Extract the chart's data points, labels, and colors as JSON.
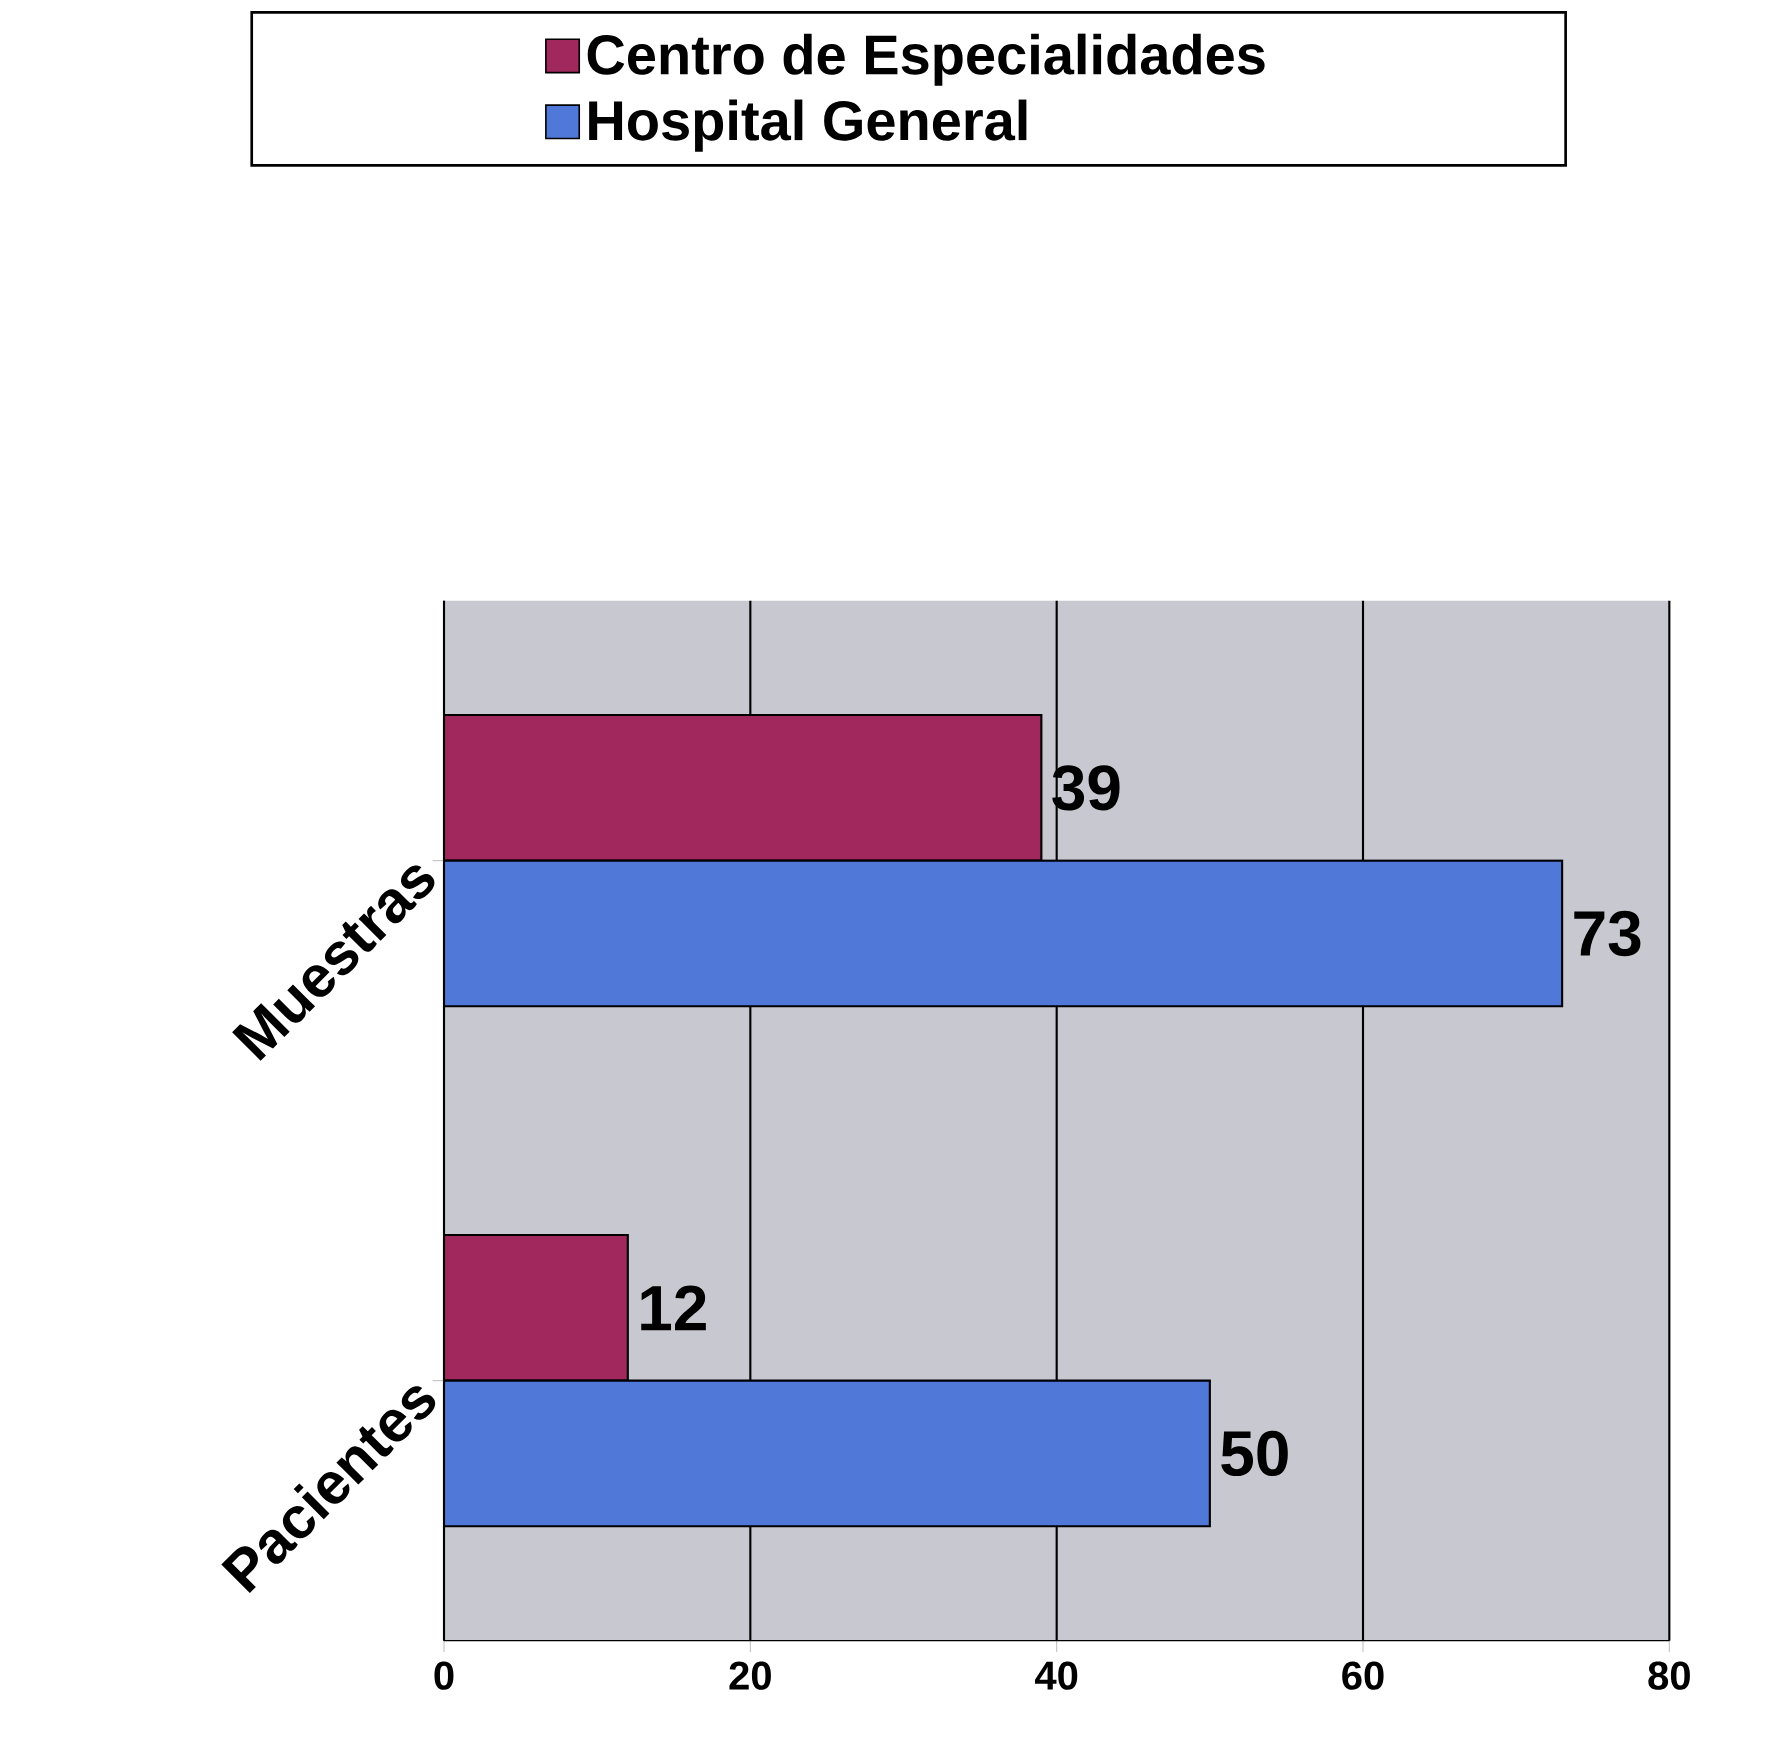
{
  "chart_data": {
    "type": "bar",
    "orientation": "horizontal",
    "categories": [
      "Muestras",
      "Pacientes"
    ],
    "series": [
      {
        "name": "Centro de Especialidades",
        "color": "#a0285c",
        "values": [
          39,
          12
        ]
      },
      {
        "name": "Hospital General",
        "color": "#4f78d8",
        "values": [
          73,
          50
        ]
      }
    ],
    "xlim": [
      0,
      80
    ],
    "xticks": [
      0,
      20,
      40,
      60,
      80
    ],
    "grid": "x",
    "legend": "top",
    "data_labels": true
  }
}
